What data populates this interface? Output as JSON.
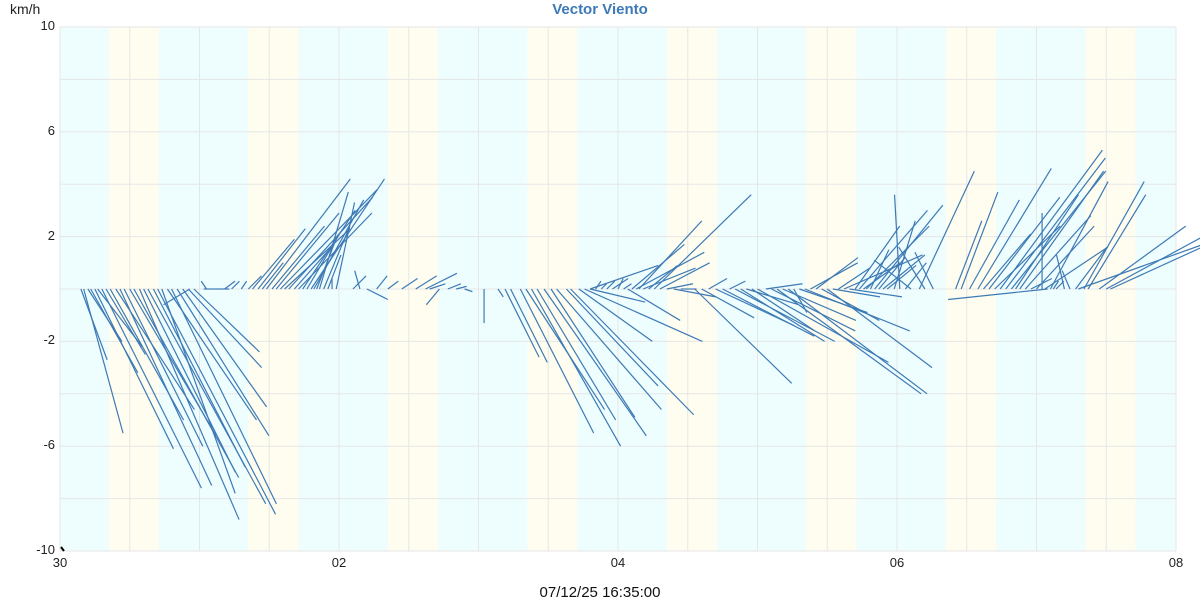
{
  "title": "Vector Viento",
  "y_unit": "km/h",
  "timestamp": "07/12/25 16:35:00",
  "colors": {
    "vector": "#3d7ab5",
    "title": "#3d7ab5",
    "night_band": "#eefdfe",
    "day_band": "#fefdf0",
    "grid": "#e6e6e6"
  },
  "y_ticks": [
    {
      "value": 10,
      "label": "10"
    },
    {
      "value": 6,
      "label": "6"
    },
    {
      "value": 2,
      "label": "2"
    },
    {
      "value": -2,
      "label": "-2"
    },
    {
      "value": -6,
      "label": "-6"
    },
    {
      "value": -10,
      "label": "-10"
    }
  ],
  "x_ticks": [
    {
      "day": 0,
      "label": "30"
    },
    {
      "day": 2,
      "label": "02"
    },
    {
      "day": 4,
      "label": "04"
    },
    {
      "day": 6,
      "label": "06"
    },
    {
      "day": 8,
      "label": "08"
    }
  ],
  "chart_data": {
    "type": "vector",
    "title": "Vector Viento",
    "xlabel": "07/12/25 16:35:00",
    "ylabel": "km/h",
    "ylim": [
      -10,
      10
    ],
    "xlim_days": [
      0,
      8
    ],
    "x_tick_labels": [
      "30",
      "02",
      "04",
      "06",
      "08"
    ],
    "y_tick_labels": [
      "10",
      "6",
      "2",
      "-2",
      "-6",
      "-10"
    ],
    "grid": true,
    "day_bands": [
      [
        0.35,
        0.71
      ],
      [
        1.35,
        1.71
      ],
      [
        2.35,
        2.71
      ],
      [
        3.35,
        2.71
      ],
      [
        4.35,
        4.71
      ],
      [
        5.35,
        5.71
      ],
      [
        6.35,
        6.71
      ],
      [
        7.35,
        7.71
      ]
    ],
    "vectors": [
      {
        "x": 0.15,
        "u": 1.0,
        "v": -2.7
      },
      {
        "x": 0.17,
        "u": 1.5,
        "v": -5.5
      },
      {
        "x": 0.2,
        "u": 1.3,
        "v": -2.0
      },
      {
        "x": 0.22,
        "u": 1.8,
        "v": -3.2
      },
      {
        "x": 0.25,
        "u": 3.0,
        "v": -6.1
      },
      {
        "x": 0.27,
        "u": 1.7,
        "v": -2.2
      },
      {
        "x": 0.3,
        "u": 3.8,
        "v": -7.6
      },
      {
        "x": 0.33,
        "u": 1.5,
        "v": -2.5
      },
      {
        "x": 0.36,
        "u": 2.8,
        "v": -5.0
      },
      {
        "x": 0.4,
        "u": 3.0,
        "v": -4.6
      },
      {
        "x": 0.43,
        "u": 3.5,
        "v": -7.5
      },
      {
        "x": 0.46,
        "u": 3.0,
        "v": -6.0
      },
      {
        "x": 0.5,
        "u": 3.3,
        "v": -5.6
      },
      {
        "x": 0.53,
        "u": 4.0,
        "v": -7.2
      },
      {
        "x": 0.57,
        "u": 3.8,
        "v": -8.8
      },
      {
        "x": 0.6,
        "u": 3.5,
        "v": -7.0
      },
      {
        "x": 0.63,
        "u": 4.5,
        "v": -8.2
      },
      {
        "x": 0.67,
        "u": 3.5,
        "v": -6.8
      },
      {
        "x": 0.7,
        "u": 4.5,
        "v": -8.6
      },
      {
        "x": 0.73,
        "u": 2.8,
        "v": -7.8
      },
      {
        "x": 0.77,
        "u": 3.4,
        "v": -5.0
      },
      {
        "x": 0.8,
        "u": 4.0,
        "v": -8.2
      },
      {
        "x": 0.84,
        "u": 3.5,
        "v": -5.6
      },
      {
        "x": 0.88,
        "u": 3.2,
        "v": -4.5
      },
      {
        "x": 0.92,
        "u": 2.8,
        "v": -3.0
      },
      {
        "x": 0.96,
        "u": 2.5,
        "v": -2.4
      },
      {
        "x": 0.93,
        "u": -1.0,
        "v": -0.6
      },
      {
        "x": 1.03,
        "u": 0.6,
        "v": 0.0
      },
      {
        "x": 1.05,
        "u": -0.2,
        "v": 0.3
      },
      {
        "x": 1.14,
        "u": 0.4,
        "v": 0.0
      },
      {
        "x": 1.18,
        "u": 0.4,
        "v": 0.3
      },
      {
        "x": 1.23,
        "u": 0.3,
        "v": 0.3
      },
      {
        "x": 1.3,
        "u": 0.2,
        "v": 0.3
      },
      {
        "x": 1.35,
        "u": 0.5,
        "v": 0.5
      },
      {
        "x": 1.38,
        "u": 1.6,
        "v": 1.9
      },
      {
        "x": 1.42,
        "u": 1.8,
        "v": 2.3
      },
      {
        "x": 1.45,
        "u": 0.8,
        "v": 1.0
      },
      {
        "x": 1.48,
        "u": 3.2,
        "v": 4.2
      },
      {
        "x": 1.52,
        "u": 2.0,
        "v": 2.4
      },
      {
        "x": 1.55,
        "u": 2.4,
        "v": 2.9
      },
      {
        "x": 1.58,
        "u": 3.7,
        "v": 3.8
      },
      {
        "x": 1.61,
        "u": 2.5,
        "v": 2.3
      },
      {
        "x": 1.64,
        "u": 3.2,
        "v": 3.5
      },
      {
        "x": 1.68,
        "u": 1.5,
        "v": 1.7
      },
      {
        "x": 1.71,
        "u": 2.8,
        "v": 2.9
      },
      {
        "x": 1.74,
        "u": 2.0,
        "v": 3.0
      },
      {
        "x": 1.77,
        "u": 1.3,
        "v": 2.2
      },
      {
        "x": 1.8,
        "u": 2.8,
        "v": 4.2
      },
      {
        "x": 1.82,
        "u": 1.9,
        "v": 3.4
      },
      {
        "x": 1.84,
        "u": 0.7,
        "v": 1.8
      },
      {
        "x": 1.86,
        "u": 1.1,
        "v": 3.7
      },
      {
        "x": 1.89,
        "u": 1.0,
        "v": 2.4
      },
      {
        "x": 1.92,
        "u": 0.5,
        "v": 1.3
      },
      {
        "x": 1.95,
        "u": 0.0,
        "v": 0.4
      },
      {
        "x": 1.98,
        "u": 0.7,
        "v": 3.3
      },
      {
        "x": 2.1,
        "u": 0.5,
        "v": 0.5
      },
      {
        "x": 2.15,
        "u": -0.2,
        "v": 0.7
      },
      {
        "x": 2.2,
        "u": 0.8,
        "v": -0.4
      },
      {
        "x": 2.27,
        "u": 0.4,
        "v": 0.5
      },
      {
        "x": 2.35,
        "u": 0.4,
        "v": 0.3
      },
      {
        "x": 2.45,
        "u": 0.6,
        "v": 0.4
      },
      {
        "x": 2.55,
        "u": 0.8,
        "v": 0.5
      },
      {
        "x": 2.62,
        "u": 1.2,
        "v": 0.6
      },
      {
        "x": 2.65,
        "u": 0.6,
        "v": 0.2
      },
      {
        "x": 2.72,
        "u": -0.5,
        "v": -0.6
      },
      {
        "x": 2.78,
        "u": 0.5,
        "v": 0.2
      },
      {
        "x": 2.84,
        "u": 0.4,
        "v": 0.1
      },
      {
        "x": 2.9,
        "u": 0.3,
        "v": -0.1
      },
      {
        "x": 3.04,
        "u": 0.0,
        "v": -1.3
      },
      {
        "x": 3.14,
        "u": 0.2,
        "v": -0.3
      },
      {
        "x": 3.19,
        "u": 1.3,
        "v": -2.6
      },
      {
        "x": 3.23,
        "u": 1.4,
        "v": -2.8
      },
      {
        "x": 3.3,
        "u": 2.8,
        "v": -5.5
      },
      {
        "x": 3.34,
        "u": 3.0,
        "v": -4.6
      },
      {
        "x": 3.38,
        "u": 3.4,
        "v": -6.0
      },
      {
        "x": 3.42,
        "u": 3.0,
        "v": -5.0
      },
      {
        "x": 3.47,
        "u": 3.9,
        "v": -5.6
      },
      {
        "x": 3.52,
        "u": 3.2,
        "v": -4.9
      },
      {
        "x": 3.56,
        "u": 4.0,
        "v": -4.6
      },
      {
        "x": 3.63,
        "u": 3.5,
        "v": -3.7
      },
      {
        "x": 3.66,
        "u": 4.7,
        "v": -4.8
      },
      {
        "x": 3.72,
        "u": 2.8,
        "v": -2.0
      },
      {
        "x": 3.76,
        "u": 4.5,
        "v": -2.0
      },
      {
        "x": 3.8,
        "u": 2.1,
        "v": -0.5
      },
      {
        "x": 3.8,
        "u": 2.6,
        "v": 0.9
      },
      {
        "x": 3.84,
        "u": 0.2,
        "v": 0.3
      },
      {
        "x": 3.88,
        "u": 0.2,
        "v": 0.2
      },
      {
        "x": 3.92,
        "u": 0.3,
        "v": 0.3
      },
      {
        "x": 3.96,
        "u": 0.6,
        "v": 0.4
      },
      {
        "x": 4.0,
        "u": 0.2,
        "v": 0.4
      },
      {
        "x": 4.04,
        "u": 0.3,
        "v": 0.2
      },
      {
        "x": 4.07,
        "u": 2.0,
        "v": -1.2
      },
      {
        "x": 4.1,
        "u": 2.0,
        "v": 1.7
      },
      {
        "x": 4.13,
        "u": 2.6,
        "v": 1.4
      },
      {
        "x": 4.15,
        "u": 2.4,
        "v": 2.6
      },
      {
        "x": 4.18,
        "u": 2.0,
        "v": 0.8
      },
      {
        "x": 4.22,
        "u": 1.1,
        "v": 0.9
      },
      {
        "x": 4.26,
        "u": 3.7,
        "v": 3.6
      },
      {
        "x": 4.3,
        "u": 1.9,
        "v": 1.0
      },
      {
        "x": 4.35,
        "u": 1.0,
        "v": 0.2
      },
      {
        "x": 4.4,
        "u": 1.6,
        "v": -0.3
      },
      {
        "x": 4.45,
        "u": 0.6,
        "v": 0.0
      },
      {
        "x": 4.55,
        "u": 3.7,
        "v": -3.6
      },
      {
        "x": 4.6,
        "u": 2.0,
        "v": -1.1
      },
      {
        "x": 4.65,
        "u": 0.7,
        "v": 0.4
      },
      {
        "x": 4.7,
        "u": 3.0,
        "v": -1.4
      },
      {
        "x": 4.75,
        "u": 3.5,
        "v": -1.8
      },
      {
        "x": 4.8,
        "u": 0.6,
        "v": 0.3
      },
      {
        "x": 4.84,
        "u": 3.8,
        "v": -2.0
      },
      {
        "x": 4.88,
        "u": 3.2,
        "v": -2.0
      },
      {
        "x": 4.92,
        "u": 2.0,
        "v": -0.6
      },
      {
        "x": 4.96,
        "u": 2.4,
        "v": -1.6
      },
      {
        "x": 5.0,
        "u": 5.0,
        "v": -2.8
      },
      {
        "x": 5.06,
        "u": 1.4,
        "v": 0.2
      },
      {
        "x": 5.1,
        "u": 3.2,
        "v": -1.6
      },
      {
        "x": 5.14,
        "u": 5.5,
        "v": -4.0
      },
      {
        "x": 5.18,
        "u": 2.8,
        "v": -1.2
      },
      {
        "x": 5.22,
        "u": 5.3,
        "v": -4.0
      },
      {
        "x": 5.26,
        "u": 0.5,
        "v": -0.9
      },
      {
        "x": 5.3,
        "u": 2.6,
        "v": -0.9
      },
      {
        "x": 5.34,
        "u": 4.0,
        "v": -1.6
      },
      {
        "x": 5.38,
        "u": 1.8,
        "v": 1.0
      },
      {
        "x": 5.42,
        "u": 1.6,
        "v": 1.2
      },
      {
        "x": 5.46,
        "u": 2.2,
        "v": -1.2
      },
      {
        "x": 5.5,
        "u": 4.0,
        "v": -3.0
      },
      {
        "x": 5.54,
        "u": 1.8,
        "v": -0.3
      },
      {
        "x": 5.58,
        "u": 1.2,
        "v": 0.8
      },
      {
        "x": 5.62,
        "u": 3.0,
        "v": 1.3
      },
      {
        "x": 5.66,
        "u": 2.0,
        "v": -0.3
      },
      {
        "x": 5.7,
        "u": 1.7,
        "v": 2.4
      },
      {
        "x": 5.73,
        "u": 2.6,
        "v": 3.0
      },
      {
        "x": 5.76,
        "u": 1.4,
        "v": 1.0
      },
      {
        "x": 5.78,
        "u": 2.4,
        "v": 2.4
      },
      {
        "x": 5.81,
        "u": 0.7,
        "v": 1.5
      },
      {
        "x": 5.84,
        "u": 2.6,
        "v": 3.2
      },
      {
        "x": 5.87,
        "u": 1.0,
        "v": 1.2
      },
      {
        "x": 5.9,
        "u": 1.6,
        "v": 1.3
      },
      {
        "x": 5.93,
        "u": 1.1,
        "v": 0.9
      },
      {
        "x": 5.98,
        "u": 0.8,
        "v": 2.6
      },
      {
        "x": 6.02,
        "u": -0.2,
        "v": 3.6
      },
      {
        "x": 6.06,
        "u": 0.8,
        "v": 1.0
      },
      {
        "x": 6.1,
        "u": -1.4,
        "v": 1.1
      },
      {
        "x": 6.16,
        "u": 2.1,
        "v": 4.5
      },
      {
        "x": 6.2,
        "u": -1.0,
        "v": 1.6
      },
      {
        "x": 6.26,
        "u": -0.7,
        "v": 1.4
      },
      {
        "x": 6.42,
        "u": 1.0,
        "v": 2.6
      },
      {
        "x": 6.46,
        "u": 1.4,
        "v": 3.7
      },
      {
        "x": 6.52,
        "u": 1.9,
        "v": 3.4
      },
      {
        "x": 6.58,
        "u": 2.8,
        "v": 4.6
      },
      {
        "x": 6.62,
        "u": 1.8,
        "v": 2.1
      },
      {
        "x": 6.66,
        "u": 2.7,
        "v": 3.5
      },
      {
        "x": 6.7,
        "u": 2.5,
        "v": 2.4
      },
      {
        "x": 6.74,
        "u": 3.9,
        "v": 5.3
      },
      {
        "x": 6.78,
        "u": 3.8,
        "v": 5.0
      },
      {
        "x": 6.82,
        "u": 3.6,
        "v": 4.5
      },
      {
        "x": 6.85,
        "u": 2.4,
        "v": 3.6
      },
      {
        "x": 6.88,
        "u": 3.2,
        "v": 4.5
      },
      {
        "x": 6.92,
        "u": 2.5,
        "v": 2.8
      },
      {
        "x": 6.96,
        "u": 0.8,
        "v": 0.4
      },
      {
        "x": 7.0,
        "u": 2.2,
        "v": 2.4
      },
      {
        "x": 7.04,
        "u": 0.0,
        "v": 2.9
      },
      {
        "x": 7.06,
        "u": 2.4,
        "v": 1.6
      },
      {
        "x": 7.1,
        "u": 2.2,
        "v": 4.1
      },
      {
        "x": 7.08,
        "u": -3.8,
        "v": -0.4
      },
      {
        "x": 7.12,
        "u": 0.2,
        "v": 0.3
      },
      {
        "x": 7.14,
        "u": 0.3,
        "v": 0.3
      },
      {
        "x": 7.2,
        "u": -0.3,
        "v": 1.3
      },
      {
        "x": 7.24,
        "u": -0.3,
        "v": 0.7
      },
      {
        "x": 7.28,
        "u": 1.2,
        "v": 1.6
      },
      {
        "x": 7.3,
        "u": 5.6,
        "v": 2.0
      },
      {
        "x": 7.34,
        "u": 2.3,
        "v": 4.1
      },
      {
        "x": 7.37,
        "u": 2.2,
        "v": 3.6
      },
      {
        "x": 7.45,
        "u": 3.3,
        "v": 2.4
      },
      {
        "x": 7.5,
        "u": 4.8,
        "v": 2.6
      },
      {
        "x": 7.53,
        "u": 4.6,
        "v": 2.1
      }
    ]
  }
}
